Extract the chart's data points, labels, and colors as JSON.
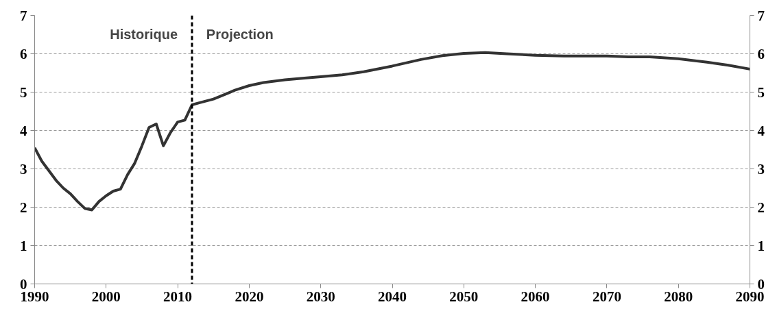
{
  "chart_data": {
    "type": "line",
    "x": [
      1990,
      1991,
      1992,
      1993,
      1994,
      1995,
      1996,
      1997,
      1998,
      1999,
      2000,
      2001,
      2002,
      2003,
      2004,
      2005,
      2006,
      2007,
      2008,
      2009,
      2010,
      2011,
      2012,
      2013,
      2015,
      2017,
      2018,
      2020,
      2022,
      2025,
      2028,
      2030,
      2033,
      2036,
      2040,
      2044,
      2047,
      2050,
      2053,
      2056,
      2060,
      2064,
      2070,
      2073,
      2076,
      2080,
      2084,
      2087,
      2090
    ],
    "series": [
      {
        "color": "#333333",
        "values": [
          3.55,
          3.2,
          2.95,
          2.7,
          2.5,
          2.35,
          2.15,
          1.97,
          1.93,
          2.15,
          2.3,
          2.42,
          2.47,
          2.85,
          3.15,
          3.6,
          4.08,
          4.17,
          3.6,
          3.95,
          4.22,
          4.27,
          4.67,
          4.72,
          4.82,
          4.97,
          5.05,
          5.17,
          5.25,
          5.32,
          5.37,
          5.4,
          5.45,
          5.53,
          5.68,
          5.85,
          5.95,
          6.01,
          6.03,
          6.0,
          5.96,
          5.94,
          5.94,
          5.92,
          5.92,
          5.87,
          5.78,
          5.7,
          5.6
        ]
      }
    ],
    "xlim": [
      1990,
      2090
    ],
    "xticks": [
      1990,
      2000,
      2010,
      2020,
      2030,
      2040,
      2050,
      2060,
      2070,
      2080,
      2090
    ],
    "ylim": [
      0,
      7
    ],
    "yticks": [
      0,
      1,
      2,
      3,
      4,
      5,
      6,
      7
    ],
    "y2lim": [
      0,
      7
    ],
    "y2ticks": [
      0,
      1,
      2,
      3,
      4,
      5,
      6,
      7
    ],
    "grid": "y",
    "marker": "none",
    "line_style": "solid",
    "ref_lines": [
      {
        "axis": "x",
        "value": 2012,
        "color": "#000000",
        "line_style": "dashed"
      }
    ],
    "annotations": [
      "Historique",
      "Projection"
    ]
  }
}
